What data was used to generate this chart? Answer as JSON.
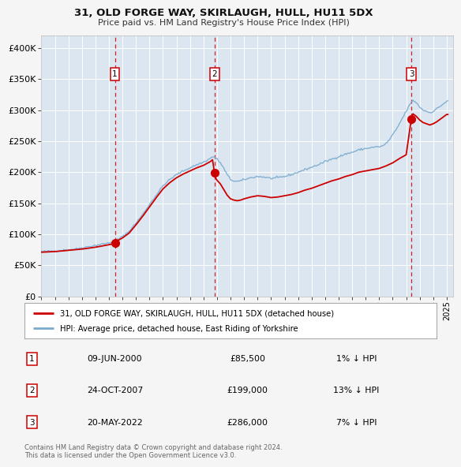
{
  "title": "31, OLD FORGE WAY, SKIRLAUGH, HULL, HU11 5DX",
  "subtitle": "Price paid vs. HM Land Registry's House Price Index (HPI)",
  "background_color": "#f5f5f5",
  "plot_bg_color": "#dce6f0",
  "grid_color": "#ffffff",
  "red_line_color": "#cc0000",
  "blue_line_color": "#6699cc",
  "ylim": [
    0,
    420000
  ],
  "yticks": [
    0,
    50000,
    100000,
    150000,
    200000,
    250000,
    300000,
    350000,
    400000
  ],
  "ytick_labels": [
    "£0",
    "£50K",
    "£100K",
    "£150K",
    "£200K",
    "£250K",
    "£300K",
    "£350K",
    "£400K"
  ],
  "purchase_prices": [
    85500,
    199000,
    286000
  ],
  "purchase_labels": [
    "1",
    "2",
    "3"
  ],
  "purchase_t": [
    2000.44,
    2007.81,
    2022.38
  ],
  "purchase_info": [
    [
      "1",
      "09-JUN-2000",
      "£85,500",
      "1% ↓ HPI"
    ],
    [
      "2",
      "24-OCT-2007",
      "£199,000",
      "13% ↓ HPI"
    ],
    [
      "3",
      "20-MAY-2022",
      "£286,000",
      "7% ↓ HPI"
    ]
  ],
  "legend_entries": [
    "31, OLD FORGE WAY, SKIRLAUGH, HULL, HU11 5DX (detached house)",
    "HPI: Average price, detached house, East Riding of Yorkshire"
  ],
  "footer_text": "Contains HM Land Registry data © Crown copyright and database right 2024.\nThis data is licensed under the Open Government Licence v3.0.",
  "hpi_anchors_x": [
    1995.0,
    1995.5,
    1996.0,
    1996.5,
    1997.0,
    1997.5,
    1998.0,
    1998.5,
    1999.0,
    1999.5,
    2000.0,
    2000.5,
    2001.0,
    2001.5,
    2002.0,
    2002.5,
    2003.0,
    2003.5,
    2004.0,
    2004.5,
    2005.0,
    2005.5,
    2006.0,
    2006.5,
    2007.0,
    2007.25,
    2007.5,
    2007.67,
    2007.83,
    2008.0,
    2008.25,
    2008.5,
    2008.75,
    2009.0,
    2009.25,
    2009.5,
    2009.75,
    2010.0,
    2010.5,
    2011.0,
    2011.5,
    2012.0,
    2012.5,
    2013.0,
    2013.5,
    2014.0,
    2014.5,
    2015.0,
    2015.5,
    2016.0,
    2016.5,
    2017.0,
    2017.5,
    2018.0,
    2018.5,
    2019.0,
    2019.5,
    2020.0,
    2020.25,
    2020.5,
    2020.75,
    2021.0,
    2021.25,
    2021.5,
    2021.75,
    2022.0,
    2022.25,
    2022.5,
    2022.75,
    2023.0,
    2023.25,
    2023.5,
    2023.75,
    2024.0,
    2024.25,
    2024.5,
    2024.75,
    2025.0
  ],
  "hpi_anchors_y": [
    72000,
    72500,
    73000,
    74000,
    75000,
    76000,
    78000,
    80000,
    82000,
    84000,
    86000,
    90000,
    96000,
    105000,
    118000,
    132000,
    148000,
    163000,
    178000,
    188000,
    196000,
    202000,
    207000,
    212000,
    216000,
    219000,
    222000,
    225000,
    224000,
    221000,
    215000,
    206000,
    196000,
    188000,
    186000,
    185000,
    186000,
    188000,
    191000,
    193000,
    192000,
    190000,
    191000,
    193000,
    196000,
    200000,
    204000,
    208000,
    212000,
    217000,
    221000,
    225000,
    229000,
    232000,
    236000,
    238000,
    240000,
    241000,
    242000,
    246000,
    252000,
    260000,
    268000,
    278000,
    288000,
    298000,
    308000,
    316000,
    312000,
    305000,
    300000,
    298000,
    296000,
    298000,
    302000,
    306000,
    310000,
    314000
  ],
  "red_anchors_x": [
    1995.0,
    1996.0,
    1997.0,
    1998.0,
    1999.0,
    2000.0,
    2000.44,
    2000.5,
    2001.0,
    2001.5,
    2002.0,
    2002.5,
    2003.0,
    2003.5,
    2004.0,
    2004.5,
    2005.0,
    2005.5,
    2006.0,
    2006.5,
    2007.0,
    2007.25,
    2007.5,
    2007.67,
    2007.81,
    2007.83,
    2008.0,
    2008.25,
    2008.5,
    2008.75,
    2009.0,
    2009.25,
    2009.5,
    2009.75,
    2010.0,
    2010.5,
    2011.0,
    2011.5,
    2012.0,
    2012.5,
    2013.0,
    2013.5,
    2014.0,
    2014.5,
    2015.0,
    2015.5,
    2016.0,
    2016.5,
    2017.0,
    2017.5,
    2018.0,
    2018.5,
    2019.0,
    2019.5,
    2020.0,
    2020.5,
    2021.0,
    2021.5,
    2022.0,
    2022.38,
    2022.5,
    2022.75,
    2023.0,
    2023.25,
    2023.5,
    2023.75,
    2024.0,
    2024.25,
    2024.5,
    2024.75,
    2025.0
  ],
  "red_anchors_y": [
    71000,
    72000,
    74000,
    76000,
    79000,
    83000,
    85500,
    88000,
    94000,
    102000,
    115000,
    129000,
    144000,
    159000,
    173000,
    183000,
    191000,
    197000,
    202000,
    207000,
    211000,
    214000,
    217000,
    220000,
    199000,
    193000,
    187000,
    181000,
    172000,
    163000,
    157000,
    155000,
    154000,
    155000,
    157000,
    160000,
    162000,
    161000,
    159000,
    160000,
    162000,
    164000,
    167000,
    171000,
    174000,
    178000,
    182000,
    186000,
    189000,
    193000,
    196000,
    200000,
    202000,
    204000,
    206000,
    210000,
    215000,
    222000,
    228000,
    286000,
    294000,
    290000,
    284000,
    280000,
    278000,
    276000,
    278000,
    281000,
    285000,
    289000,
    293000
  ]
}
